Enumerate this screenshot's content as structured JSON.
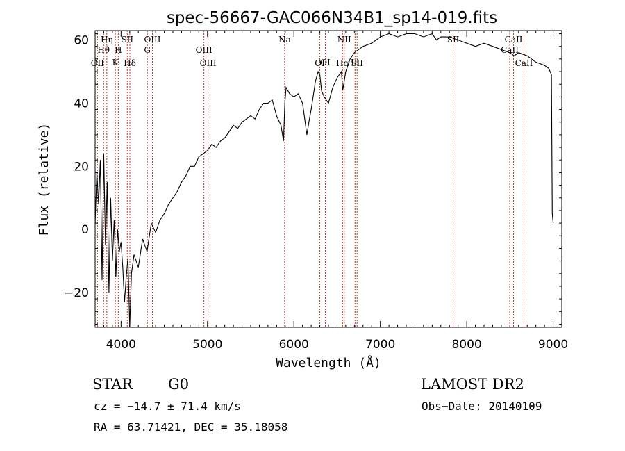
{
  "chart_data": {
    "type": "line",
    "title": "spec-56667-GAC066N34B1_sp14-019.fits",
    "xlabel": "Wavelength (Å)",
    "ylabel": "Flux (relative)",
    "xlim": [
      3700,
      9100
    ],
    "ylim": [
      -31,
      63
    ],
    "xticks": [
      "4000",
      "5000",
      "6000",
      "7000",
      "8000",
      "9000"
    ],
    "yticks": [
      "−20",
      "0",
      "20",
      "40",
      "60"
    ],
    "series": [
      {
        "x": [
          3700,
          3720,
          3740,
          3760,
          3780,
          3800,
          3820,
          3840,
          3860,
          3880,
          3900,
          3920,
          3940,
          3960,
          3980,
          4000,
          4020,
          4040,
          4060,
          4080,
          4100,
          4120,
          4150,
          4200,
          4250,
          4300,
          4350,
          4400,
          4450,
          4500,
          4550,
          4600,
          4650,
          4700,
          4750,
          4800,
          4850,
          4900,
          4950,
          5000,
          5050,
          5100,
          5150,
          5200,
          5250,
          5300,
          5350,
          5400,
          5450,
          5500,
          5550,
          5600,
          5650,
          5700,
          5750,
          5800,
          5850,
          5880,
          5895,
          5910,
          5930,
          5950,
          6000,
          6050,
          6100,
          6120,
          6150,
          6180,
          6200,
          6250,
          6280,
          6300,
          6320,
          6350,
          6400,
          6450,
          6500,
          6550,
          6565,
          6600,
          6650,
          6700,
          6800,
          6900,
          7000,
          7100,
          7200,
          7300,
          7400,
          7500,
          7600,
          7650,
          7700,
          7800,
          7900,
          8000,
          8100,
          8200,
          8300,
          8400,
          8500,
          8550,
          8600,
          8700,
          8800,
          8900,
          8950,
          8980,
          8990,
          9000
        ],
        "y": [
          2,
          18,
          8,
          22,
          -16,
          24,
          -5,
          15,
          -20,
          10,
          -10,
          3,
          -15,
          0,
          -7,
          -4,
          -12,
          -23,
          -15,
          -9,
          -31,
          -14,
          -8,
          -12,
          -3,
          -7,
          2,
          -1,
          3,
          5,
          8,
          10,
          12,
          15,
          17,
          20,
          20,
          23,
          24,
          25,
          27,
          26,
          28,
          29,
          31,
          33,
          32,
          34,
          35,
          36,
          35,
          38,
          40,
          40,
          41,
          36,
          33,
          28,
          40,
          45,
          44,
          43,
          42,
          43,
          40,
          36,
          30,
          35,
          38,
          47,
          50,
          49,
          44,
          42,
          40,
          45,
          48,
          50,
          44,
          50,
          54,
          56,
          58,
          59,
          61,
          62,
          61,
          62,
          62,
          61,
          62,
          60,
          61,
          61,
          60,
          59,
          58,
          59,
          58,
          57,
          56,
          55,
          56,
          55,
          53,
          52,
          51,
          49,
          5,
          2
        ]
      }
    ],
    "lines": [
      {
        "label": "OII",
        "x": 3727,
        "row": 3
      },
      {
        "label": "Hη",
        "x": 3835,
        "row": 0
      },
      {
        "label": "Hθ",
        "x": 3798,
        "row": 1
      },
      {
        "label": "K",
        "x": 3934,
        "row": 2
      },
      {
        "label": "H",
        "x": 3968,
        "row": 1
      },
      {
        "label": "SII",
        "x": 4072,
        "row": 0
      },
      {
        "label": "Hδ",
        "x": 4102,
        "row": 3
      },
      {
        "label": "OIII",
        "x": 4363,
        "row": 0
      },
      {
        "label": "G",
        "x": 4304,
        "row": 1
      },
      {
        "label": "OIII",
        "x": 4959,
        "row": 1
      },
      {
        "label": "OIII",
        "x": 5007,
        "row": 3
      },
      {
        "label": "Na",
        "x": 5893,
        "row": 0
      },
      {
        "label": "OI",
        "x": 6364,
        "row": 2
      },
      {
        "label": "OI",
        "x": 6300,
        "row": 3
      },
      {
        "label": "NII",
        "x": 6583,
        "row": 0
      },
      {
        "label": "Hα",
        "x": 6563,
        "row": 3
      },
      {
        "label": "Li",
        "x": 6708,
        "row": 2
      },
      {
        "label": "SII",
        "x": 6731,
        "row": 3
      },
      {
        "label": "SII",
        "x": 7843,
        "row": 0
      },
      {
        "label": "CaII",
        "x": 8542,
        "row": 0
      },
      {
        "label": "CaII",
        "x": 8498,
        "row": 1
      },
      {
        "label": "CaII",
        "x": 8662,
        "row": 3
      }
    ]
  },
  "info": {
    "class": "STAR",
    "subclass": "G0",
    "survey": "LAMOST DR2",
    "cz": "cz = −14.7 ± 71.4 km/s",
    "obs_date": "Obs−Date: 20140109",
    "radec": "RA =  63.71421, DEC =  35.18058"
  }
}
